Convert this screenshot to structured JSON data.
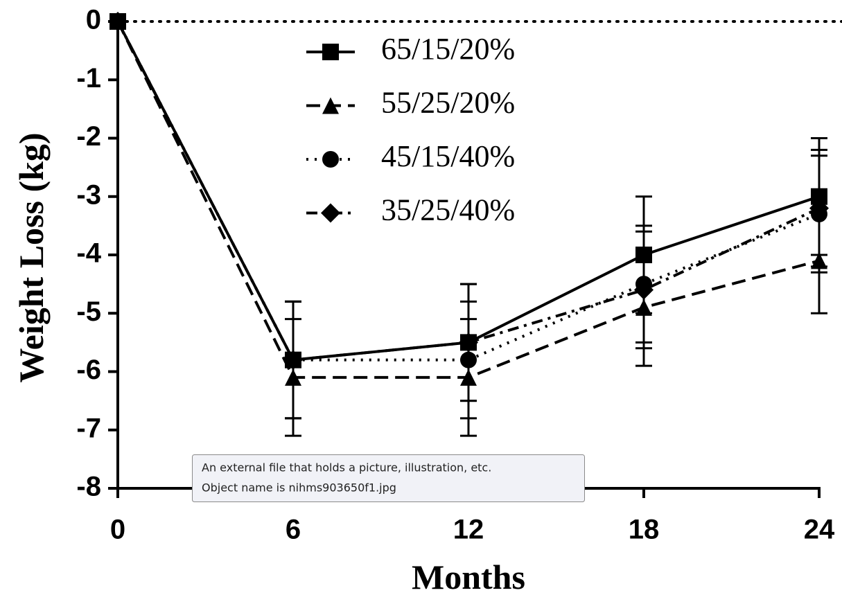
{
  "chart_data": {
    "type": "line",
    "x_label": "Months",
    "y_label": "Weight Loss (kg)",
    "x": [
      0,
      6,
      12,
      18,
      24
    ],
    "xlim": [
      0,
      24
    ],
    "xticks": [
      0,
      6,
      12,
      18,
      24
    ],
    "ylim": [
      -8,
      0
    ],
    "yticks": [
      -8,
      -7,
      -6,
      -5,
      -4,
      -3,
      -2,
      -1,
      0
    ],
    "legend": "top",
    "series": [
      {
        "name": "65/15/20%",
        "color": "#000000",
        "marker": "square",
        "line_style": "solid",
        "values": [
          0,
          -5.8,
          -5.5,
          -4.0,
          -3.0
        ],
        "errors": [
          0,
          1.0,
          1.0,
          1.0,
          1.0
        ]
      },
      {
        "name": "55/25/20%",
        "color": "#000000",
        "marker": "triangle",
        "line_style": "dashed",
        "values": [
          0,
          -6.1,
          -6.1,
          -4.9,
          -4.1
        ],
        "errors": [
          0,
          1.0,
          1.0,
          1.0,
          0.9
        ]
      },
      {
        "name": "45/15/40%",
        "color": "#000000",
        "marker": "circle",
        "line_style": "dotted",
        "values": [
          0,
          -5.8,
          -5.8,
          -4.5,
          -3.3
        ],
        "errors": [
          0,
          1.0,
          1.0,
          1.0,
          1.0
        ]
      },
      {
        "name": "35/25/40%",
        "color": "#000000",
        "marker": "diamond",
        "line_style": "dashdot",
        "values": [
          0,
          -5.8,
          -5.5,
          -4.6,
          -3.2
        ],
        "errors": [
          0,
          1.0,
          1.0,
          1.0,
          1.0
        ]
      }
    ]
  },
  "tooltip": {
    "lines": [
      "An external file that holds a picture, illustration, etc.",
      "Object name is nihms903650f1.jpg"
    ]
  }
}
